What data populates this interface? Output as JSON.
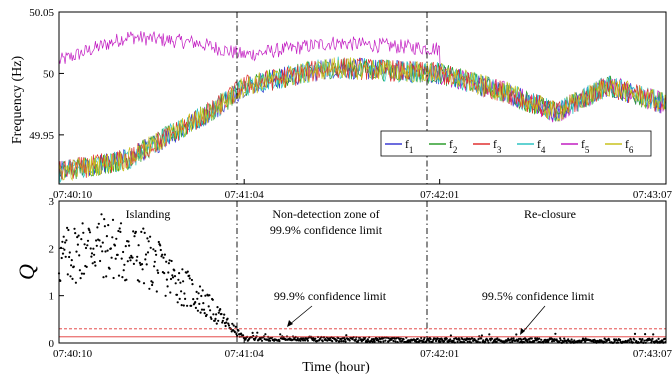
{
  "chart_data": [
    {
      "type": "line",
      "ylabel": "Frequency (Hz)",
      "ylim": [
        49.91,
        50.05
      ],
      "yticks": [
        "50.05",
        "50",
        "49.95"
      ],
      "yticks_values": [
        50.05,
        50.0,
        49.95
      ],
      "xticks": [
        "07:40:10",
        "07:41:04",
        "07:42:01",
        "07:43:07"
      ],
      "xticks_seconds": [
        0,
        54,
        111,
        177
      ],
      "vlines_at": [
        "07:41:04",
        "07:42:01"
      ],
      "legend_placement": "lower-right",
      "legend": [
        {
          "base": "f",
          "sub": "1",
          "color": "#3b3bd4"
        },
        {
          "base": "f",
          "sub": "2",
          "color": "#2e9e2e"
        },
        {
          "base": "f",
          "sub": "3",
          "color": "#e03030"
        },
        {
          "base": "f",
          "sub": "4",
          "color": "#2ec4c4"
        },
        {
          "base": "f",
          "sub": "5",
          "color": "#c21ec2"
        },
        {
          "base": "f",
          "sub": "6",
          "color": "#c8c21e"
        }
      ],
      "trend_time": [
        "07:40:10",
        "07:40:30",
        "07:40:55",
        "07:41:04",
        "07:41:30",
        "07:42:01",
        "07:42:20",
        "07:42:35",
        "07:42:50",
        "07:43:07"
      ],
      "trend_freq": [
        49.92,
        49.93,
        49.97,
        49.99,
        50.005,
        50.0,
        49.985,
        49.968,
        49.99,
        49.975
      ],
      "f5_time": [
        "07:40:10",
        "07:40:30",
        "07:40:50",
        "07:41:04",
        "07:41:30",
        "07:42:01"
      ],
      "f5_freq": [
        50.01,
        50.03,
        50.025,
        50.015,
        50.025,
        50.02
      ],
      "grid": false
    },
    {
      "type": "scatter",
      "ylabel": "Q",
      "xlabel": "Time (hour)",
      "ylim": [
        0,
        3
      ],
      "yticks": [
        "0",
        "1",
        "2",
        "3"
      ],
      "xticks": [
        "07:40:10",
        "07:41:04",
        "07:42:01",
        "07:43:07"
      ],
      "xticks_seconds": [
        0,
        54,
        111,
        177
      ],
      "vlines_at": [
        "07:41:04",
        "07:42:01"
      ],
      "confidence_limits": [
        {
          "label": "99.9% confidence limit",
          "value": 0.3,
          "color": "#e03030",
          "style": "dashed"
        },
        {
          "label": "99.5% confidence limit",
          "value": 0.13,
          "color": "#e03030",
          "style": "solid"
        }
      ],
      "q_trend_time": [
        "07:40:10",
        "07:40:20",
        "07:40:35",
        "07:40:50",
        "07:41:00",
        "07:41:04",
        "07:42:01",
        "07:43:07"
      ],
      "q_trend_value": [
        1.75,
        2.1,
        1.8,
        1.0,
        0.35,
        0.1,
        0.06,
        0.04
      ],
      "annotations": {
        "islanding": "Islanding",
        "ndz_line1": "Non-detection zone of",
        "ndz_line2": "99.9% confidence limit",
        "reclosure": "Re-closure",
        "limit999": "99.9% confidence limit",
        "limit995": "99.5% confidence limit"
      },
      "grid": false
    }
  ]
}
